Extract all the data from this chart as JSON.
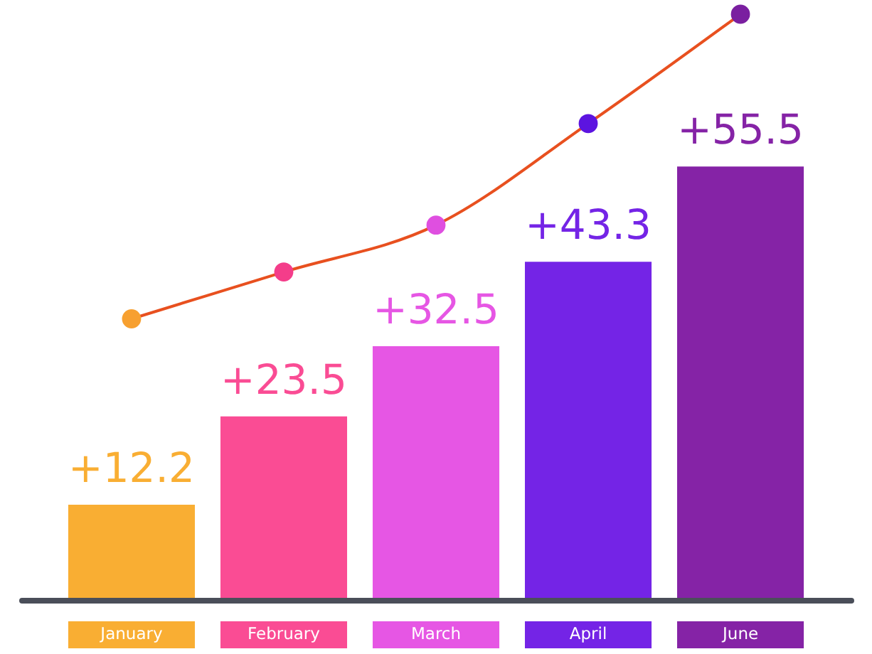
{
  "chart_data": {
    "type": "bar",
    "categories": [
      "January",
      "February",
      "March",
      "April",
      "June"
    ],
    "series": [
      {
        "values": [
          12.2,
          23.5,
          32.5,
          43.3,
          55.5
        ],
        "colors": [
          "#f9ae33",
          "#fa4c94",
          "#e656e4",
          "#7424e6",
          "#8523a6"
        ],
        "value_labels": [
          "+12.2",
          "+23.5",
          "+32.5",
          "+43.3",
          "+55.5"
        ]
      },
      {
        "type": "line",
        "color": "#e8501f",
        "colors": [
          "#f7a030",
          "#f43d8a",
          "#df4fe0",
          "#5c14e0",
          "#7a1fa0"
        ],
        "values": [
          36,
          42,
          48,
          61,
          75
        ]
      }
    ],
    "marker": "circle",
    "tick_labels": "x"
  }
}
